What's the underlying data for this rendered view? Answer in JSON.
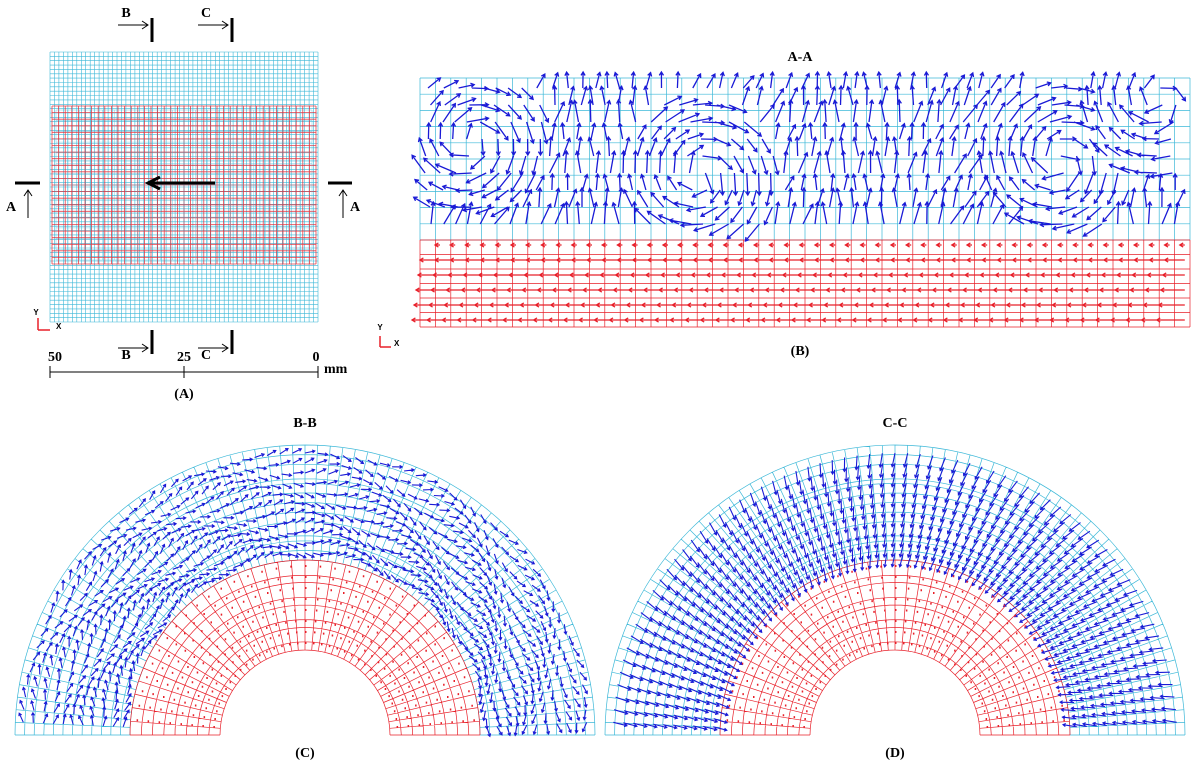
{
  "panel_a": {
    "label": "(A)",
    "section_marks": {
      "b_top": "B",
      "c_top": "C",
      "a_left": "A",
      "a_right": "A",
      "b_bottom": "B",
      "c_bottom": "C"
    },
    "scale": {
      "ticks": [
        50,
        25,
        0
      ],
      "unit": "mm"
    },
    "axes": {
      "y": "Y",
      "x": "X"
    }
  },
  "panel_b": {
    "title": "A-A",
    "label": "(B)",
    "axes": {
      "y": "Y",
      "x": "X"
    }
  },
  "panel_c": {
    "title": "B-B",
    "label": "(C)"
  },
  "panel_d": {
    "title": "C-C",
    "label": "(D)"
  }
}
